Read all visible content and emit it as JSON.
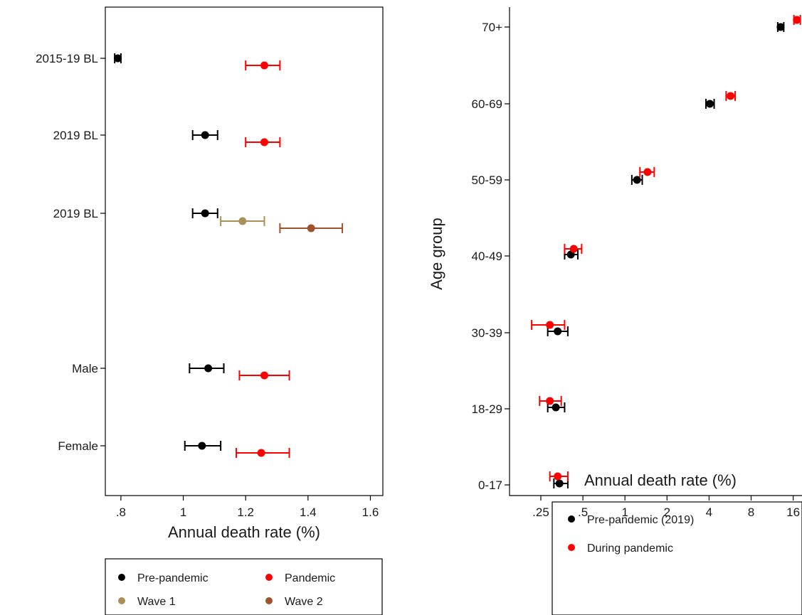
{
  "chart_data": [
    {
      "type": "scatter",
      "subtype": "dot-whisker",
      "xlabel": "Annual death rate (%)",
      "ylabel": "",
      "xlim": [
        0.75,
        1.64
      ],
      "xticks": [
        0.8,
        1.0,
        1.2,
        1.4,
        1.6
      ],
      "xtick_labels": [
        ".8",
        "1",
        "1.2",
        "1.4",
        "1.6"
      ],
      "categories": [
        "2015-19 BL",
        "2019 BL",
        "2019 BL",
        "Male",
        "Female"
      ],
      "series": [
        {
          "name": "Pre-pandemic",
          "color": "#000000",
          "points": [
            {
              "row": 0,
              "value": 0.79,
              "ci": [
                0.78,
                0.8
              ]
            },
            {
              "row": 1,
              "value": 1.07,
              "ci": [
                1.03,
                1.11
              ]
            },
            {
              "row": 2,
              "value": 1.07,
              "ci": [
                1.03,
                1.11
              ]
            },
            {
              "row": 3,
              "value": 1.08,
              "ci": [
                1.02,
                1.13
              ]
            },
            {
              "row": 4,
              "value": 1.06,
              "ci": [
                1.005,
                1.12
              ]
            }
          ]
        },
        {
          "name": "Pandemic",
          "color": "#ff0000",
          "points": [
            {
              "row": 0,
              "value": 1.26,
              "ci": [
                1.2,
                1.31
              ]
            },
            {
              "row": 1,
              "value": 1.26,
              "ci": [
                1.2,
                1.31
              ]
            },
            {
              "row": 3,
              "value": 1.26,
              "ci": [
                1.18,
                1.34
              ]
            },
            {
              "row": 4,
              "value": 1.25,
              "ci": [
                1.17,
                1.34
              ]
            }
          ]
        },
        {
          "name": "Wave 1",
          "color": "#a89159",
          "points": [
            {
              "row": 2,
              "value": 1.19,
              "ci": [
                1.12,
                1.26
              ]
            }
          ]
        },
        {
          "name": "Wave 2",
          "color": "#a0522d",
          "points": [
            {
              "row": 2,
              "value": 1.41,
              "ci": [
                1.31,
                1.51
              ]
            }
          ]
        }
      ],
      "legend": [
        "Pre-pandemic",
        "Pandemic",
        "Wave 1",
        "Wave 2"
      ],
      "legend_position": "bottom",
      "grid": false
    },
    {
      "type": "scatter",
      "subtype": "dot-whisker",
      "x_scale": "log2",
      "xlabel": "Annual death rate (%)",
      "ylabel": "Age group",
      "xlim": [
        0.17,
        18
      ],
      "xticks": [
        0.25,
        0.5,
        1,
        2,
        4,
        8,
        16
      ],
      "xtick_labels": [
        ".25",
        ".5",
        "1",
        "2",
        "4",
        "8",
        "16"
      ],
      "categories": [
        "70+",
        "60-69",
        "50-59",
        "40-49",
        "30-39",
        "18-29",
        "0-17"
      ],
      "series": [
        {
          "name": "Pre-pandemic (2019)",
          "color": "#000000",
          "points": [
            {
              "group": "70+",
              "value": 13.0,
              "ci": [
                12.4,
                13.7
              ]
            },
            {
              "group": "60-69",
              "value": 4.05,
              "ci": [
                3.8,
                4.35
              ]
            },
            {
              "group": "50-59",
              "value": 1.22,
              "ci": [
                1.12,
                1.33
              ]
            },
            {
              "group": "40-49",
              "value": 0.41,
              "ci": [
                0.37,
                0.46
              ]
            },
            {
              "group": "30-39",
              "value": 0.33,
              "ci": [
                0.28,
                0.39
              ]
            },
            {
              "group": "18-29",
              "value": 0.32,
              "ci": [
                0.28,
                0.37
              ]
            },
            {
              "group": "0-17",
              "value": 0.34,
              "ci": [
                0.31,
                0.39
              ]
            }
          ]
        },
        {
          "name": "During pandemic",
          "color": "#ff0000",
          "points": [
            {
              "group": "70+",
              "value": 17.0,
              "ci": [
                16.2,
                18.0
              ]
            },
            {
              "group": "60-69",
              "value": 5.7,
              "ci": [
                5.3,
                6.15
              ]
            },
            {
              "group": "50-59",
              "value": 1.45,
              "ci": [
                1.28,
                1.62
              ]
            },
            {
              "group": "40-49",
              "value": 0.43,
              "ci": [
                0.37,
                0.49
              ]
            },
            {
              "group": "30-39",
              "value": 0.29,
              "ci": [
                0.215,
                0.37
              ]
            },
            {
              "group": "18-29",
              "value": 0.29,
              "ci": [
                0.245,
                0.35
              ]
            },
            {
              "group": "0-17",
              "value": 0.33,
              "ci": [
                0.29,
                0.39
              ]
            }
          ]
        }
      ],
      "legend": [
        "Pre-pandemic (2019)",
        "During pandemic"
      ],
      "legend_position": "bottom",
      "grid": false
    }
  ]
}
